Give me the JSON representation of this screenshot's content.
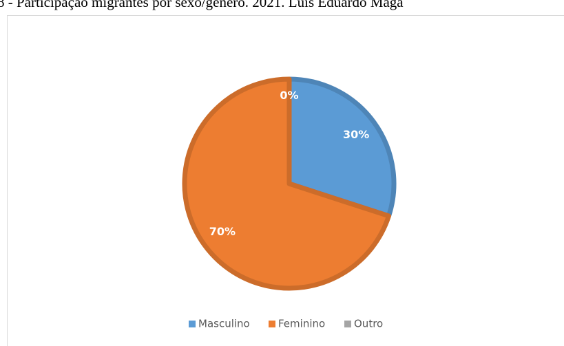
{
  "chart_data": {
    "type": "pie",
    "title": "8 - Participação migrantes por sexo/gênero. 2021. Luís Eduardo Maga",
    "categories": [
      "Masculino",
      "Feminino",
      "Outro"
    ],
    "values": [
      30,
      70,
      0
    ],
    "value_labels": [
      "30%",
      "70%",
      "0%"
    ],
    "colors": [
      "#5b9bd5",
      "#ed7d31",
      "#a5a5a5"
    ],
    "legend": "bottom"
  }
}
